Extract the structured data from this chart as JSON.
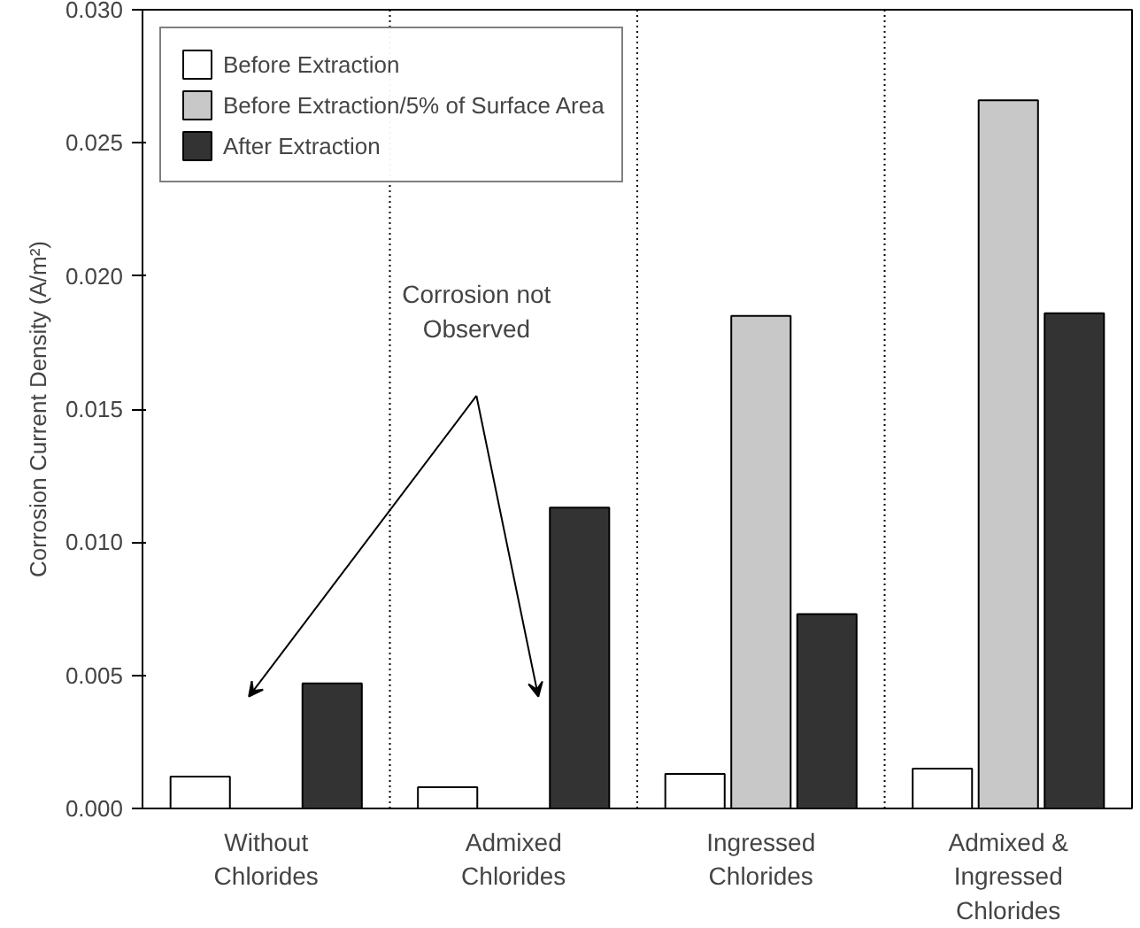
{
  "chart_data": {
    "type": "bar",
    "ylabel": "Corrosion Current Density (A/m²)",
    "categories": [
      "Without\nChlorides",
      "Admixed\nChlorides",
      "Ingressed\nChlorides",
      "Admixed &\nIngressed\nChlorides"
    ],
    "series": [
      {
        "name": "Before Extraction",
        "color": "#ffffff",
        "values": [
          0.0012,
          0.0008,
          0.0013,
          0.0015
        ]
      },
      {
        "name": "Before Extraction/5% of Surface Area",
        "color": "#c8c8c8",
        "values": [
          null,
          null,
          0.0185,
          0.0266
        ]
      },
      {
        "name": "After Extraction",
        "color": "#333333",
        "values": [
          0.0047,
          0.0113,
          0.0073,
          0.0186
        ]
      }
    ],
    "ylim": [
      0,
      0.03
    ],
    "yticks": [
      {
        "value": 0,
        "label": "0.000"
      },
      {
        "value": 0.005,
        "label": "0.005"
      },
      {
        "value": 0.01,
        "label": "0.010"
      },
      {
        "value": 0.015,
        "label": "0.015"
      },
      {
        "value": 0.02,
        "label": "0.020"
      },
      {
        "value": 0.025,
        "label": "0.025"
      },
      {
        "value": 0.03,
        "label": "0.030"
      }
    ],
    "annotations": [
      "Corrosion not\nObserved"
    ],
    "grid": "x",
    "legend": "top left"
  }
}
